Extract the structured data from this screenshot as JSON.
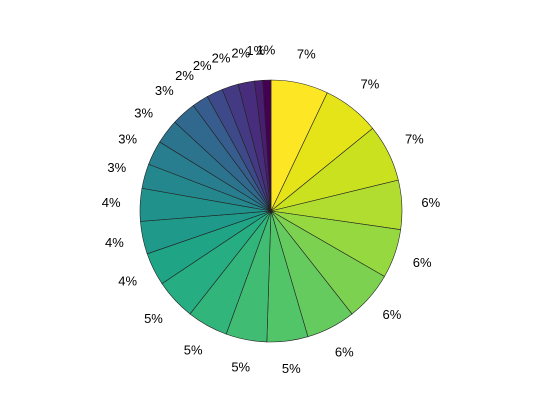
{
  "chart_data": {
    "type": "pie",
    "values": [
      7,
      7,
      7,
      6,
      6,
      6,
      6,
      5,
      5,
      5,
      5,
      4,
      4,
      4,
      3,
      3,
      3,
      3,
      2,
      2,
      2,
      2,
      1,
      1
    ],
    "value_labels": [
      "7%",
      "7%",
      "7%",
      "6%",
      "6%",
      "6%",
      "6%",
      "5%",
      "5%",
      "5%",
      "5%",
      "4%",
      "4%",
      "4%",
      "3%",
      "3%",
      "3%",
      "3%",
      "2%",
      "2%",
      "2%",
      "2%",
      "1%",
      "1%"
    ],
    "colors": [
      "#fde725",
      "#e5e419",
      "#cae11f",
      "#b0dd2f",
      "#95d840",
      "#7cd250",
      "#65cb5e",
      "#52c569",
      "#40bd72",
      "#31b57b",
      "#26ad81",
      "#20a486",
      "#1f9a8a",
      "#21918c",
      "#24878e",
      "#287d8e",
      "#2c738e",
      "#31688e",
      "#365d8d",
      "#3e4989",
      "#443983",
      "#472d7b",
      "#481f70",
      "#440154"
    ]
  }
}
